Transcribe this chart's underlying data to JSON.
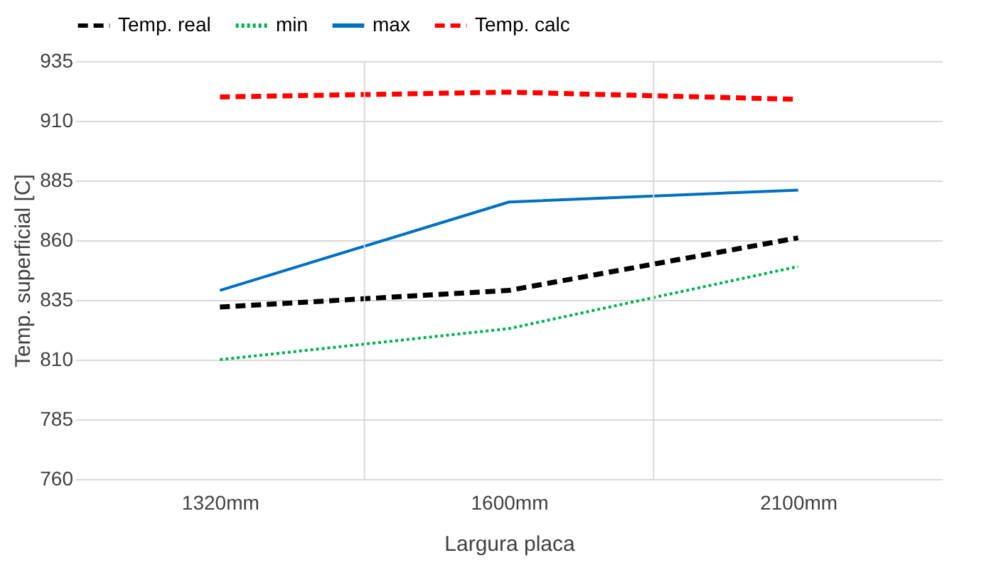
{
  "chart_data": {
    "type": "line",
    "xlabel": "Largura placa",
    "ylabel": "Temp. superficial [C]",
    "categories": [
      "1320mm",
      "1600mm",
      "2100mm"
    ],
    "series": [
      {
        "name": "Temp. real",
        "color": "#000000",
        "line_style": "dashed",
        "values": [
          832,
          839,
          861
        ]
      },
      {
        "name": "min",
        "color": "#00b050",
        "line_style": "dotted",
        "values": [
          810,
          823,
          849
        ]
      },
      {
        "name": "max",
        "color": "#0070c0",
        "line_style": "solid",
        "values": [
          839,
          876,
          881
        ]
      },
      {
        "name": "Temp. calc",
        "color": "#ff0000",
        "line_style": "dashed",
        "values": [
          920,
          922,
          919
        ]
      }
    ],
    "ylim": [
      760,
      935
    ],
    "yticks": [
      760,
      785,
      810,
      835,
      860,
      885,
      910,
      935
    ],
    "grid": true,
    "legend": "top",
    "marker": "none"
  }
}
